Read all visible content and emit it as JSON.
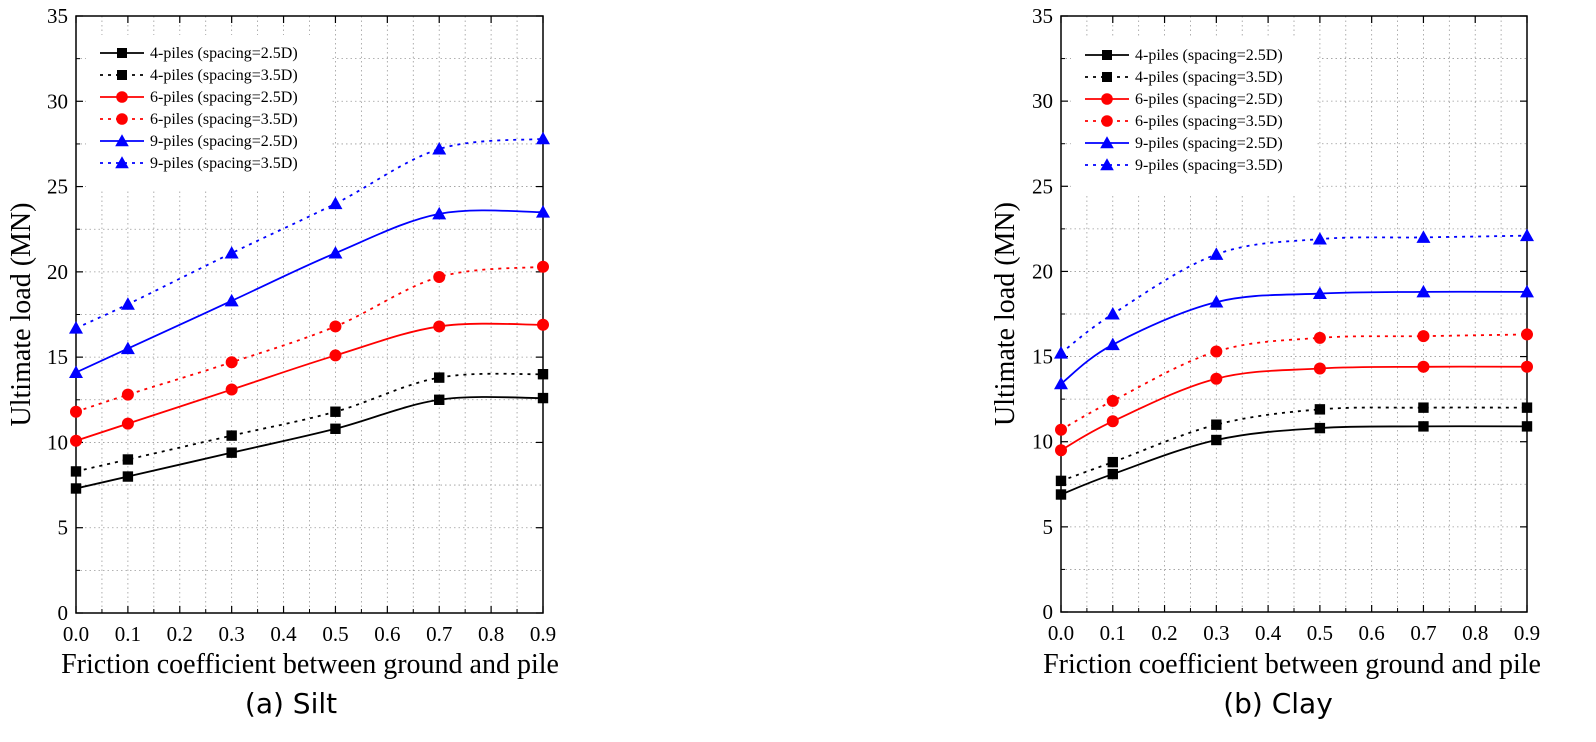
{
  "chart_data": [
    {
      "type": "line",
      "caption": "(a) Silt",
      "xlabel": "Friction coefficient between ground and pile",
      "ylabel": "Ultimate load (MN)",
      "xlim": [
        0.0,
        0.9
      ],
      "ylim": [
        0,
        35
      ],
      "xticks": [
        "0.0",
        "0.1",
        "0.2",
        "0.3",
        "0.4",
        "0.5",
        "0.6",
        "0.7",
        "0.8",
        "0.9"
      ],
      "yticks": [
        "0",
        "5",
        "10",
        "15",
        "20",
        "25",
        "30",
        "35"
      ],
      "grid": true,
      "legend_position": "top-left",
      "x": [
        0.0,
        0.1,
        0.3,
        0.5,
        0.7,
        0.9
      ],
      "series": [
        {
          "name": "4-piles (spacing=2.5D)",
          "color": "#000000",
          "marker": "square",
          "dash": "solid",
          "values": [
            7.3,
            8.0,
            9.4,
            10.8,
            12.5,
            12.6
          ]
        },
        {
          "name": "4-piles (spacing=3.5D)",
          "color": "#000000",
          "marker": "square",
          "dash": "dotted",
          "values": [
            8.3,
            9.0,
            10.4,
            11.8,
            13.8,
            14.0
          ]
        },
        {
          "name": "6-piles (spacing=2.5D)",
          "color": "#ff0000",
          "marker": "circle",
          "dash": "solid",
          "values": [
            10.1,
            11.1,
            13.1,
            15.1,
            16.8,
            16.9
          ]
        },
        {
          "name": "6-piles (spacing=3.5D)",
          "color": "#ff0000",
          "marker": "circle",
          "dash": "dotted",
          "values": [
            11.8,
            12.8,
            14.7,
            16.8,
            19.7,
            20.3
          ]
        },
        {
          "name": "9-piles (spacing=2.5D)",
          "color": "#0000ff",
          "marker": "triangle",
          "dash": "solid",
          "values": [
            14.1,
            15.5,
            18.3,
            21.1,
            23.4,
            23.5
          ]
        },
        {
          "name": "9-piles (spacing=3.5D)",
          "color": "#0000ff",
          "marker": "triangle",
          "dash": "dotted",
          "values": [
            16.7,
            18.1,
            21.1,
            24.0,
            27.2,
            27.8
          ]
        }
      ]
    },
    {
      "type": "line",
      "caption": "(b) Clay",
      "xlabel": "Friction coefficient between ground and pile",
      "ylabel": "Ultimate load (MN)",
      "xlim": [
        0.0,
        0.9
      ],
      "ylim": [
        0,
        35
      ],
      "xticks": [
        "0.0",
        "0.1",
        "0.2",
        "0.3",
        "0.4",
        "0.5",
        "0.6",
        "0.7",
        "0.8",
        "0.9"
      ],
      "yticks": [
        "0",
        "5",
        "10",
        "15",
        "20",
        "25",
        "30",
        "35"
      ],
      "grid": true,
      "legend_position": "top-left",
      "x": [
        0.0,
        0.1,
        0.3,
        0.5,
        0.7,
        0.9
      ],
      "series": [
        {
          "name": "4-piles (spacing=2.5D)",
          "color": "#000000",
          "marker": "square",
          "dash": "solid",
          "values": [
            6.9,
            8.1,
            10.1,
            10.8,
            10.9,
            10.9
          ]
        },
        {
          "name": "4-piles (spacing=3.5D)",
          "color": "#000000",
          "marker": "square",
          "dash": "dotted",
          "values": [
            7.7,
            8.8,
            11.0,
            11.9,
            12.0,
            12.0
          ]
        },
        {
          "name": "6-piles (spacing=2.5D)",
          "color": "#ff0000",
          "marker": "circle",
          "dash": "solid",
          "values": [
            9.5,
            11.2,
            13.7,
            14.3,
            14.4,
            14.4
          ]
        },
        {
          "name": "6-piles (spacing=3.5D)",
          "color": "#ff0000",
          "marker": "circle",
          "dash": "dotted",
          "values": [
            10.7,
            12.4,
            15.3,
            16.1,
            16.2,
            16.3
          ]
        },
        {
          "name": "9-piles (spacing=2.5D)",
          "color": "#0000ff",
          "marker": "triangle",
          "dash": "solid",
          "values": [
            13.4,
            15.7,
            18.2,
            18.7,
            18.8,
            18.8
          ]
        },
        {
          "name": "9-piles (spacing=3.5D)",
          "color": "#0000ff",
          "marker": "triangle",
          "dash": "dotted",
          "values": [
            15.2,
            17.5,
            21.0,
            21.9,
            22.0,
            22.1
          ]
        }
      ]
    }
  ]
}
